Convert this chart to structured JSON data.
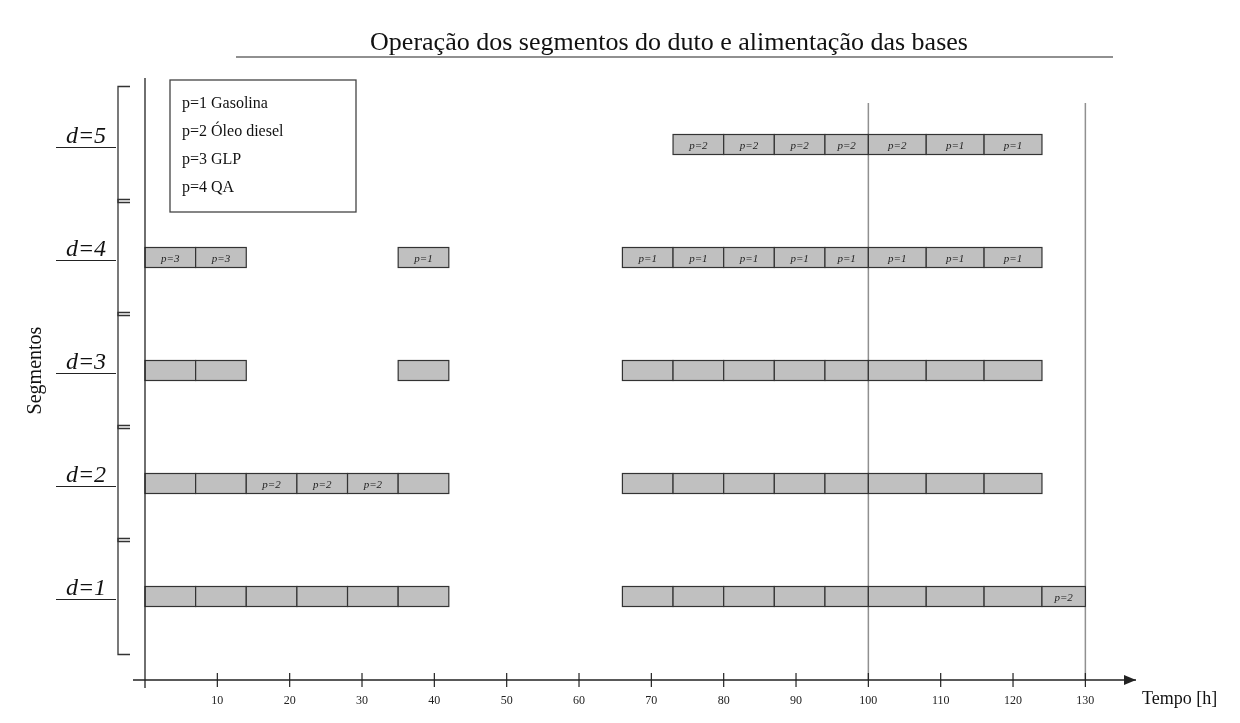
{
  "chart_data": {
    "type": "bar",
    "orientation": "horizontal",
    "title": "Operação dos segmentos do duto e alimentação das bases",
    "xlabel": "Tempo [h]",
    "ylabel": "Segmentos",
    "categories": [
      "d=5",
      "d=4",
      "d=3",
      "d=2",
      "d=1"
    ],
    "xlim": [
      0,
      137
    ],
    "xticks": [
      10,
      20,
      30,
      40,
      50,
      60,
      70,
      80,
      90,
      100,
      110,
      120,
      130
    ],
    "grid": false,
    "annotations": [
      "p=1 Gasolina",
      "p=2 Óleo diesel",
      "p=3 GLP",
      "p=4 QA",
      {
        "text": "p=3",
        "x": 3.5,
        "y": "d=4"
      },
      {
        "text": "p=3",
        "x": 10.5,
        "y": "d=4"
      },
      {
        "text": "p=1",
        "x": 38.5,
        "y": "d=4"
      },
      {
        "text": "p=1",
        "x": 69.5,
        "y": "d=4"
      },
      {
        "text": "p=1",
        "x": 76.5,
        "y": "d=4"
      },
      {
        "text": "p=1",
        "x": 83.5,
        "y": "d=4"
      },
      {
        "text": "p=1",
        "x": 90.5,
        "y": "d=4"
      },
      {
        "text": "p=1",
        "x": 97,
        "y": "d=4"
      },
      {
        "text": "p=1",
        "x": 104,
        "y": "d=4"
      },
      {
        "text": "p=1",
        "x": 112,
        "y": "d=4"
      },
      {
        "text": "p=1",
        "x": 120,
        "y": "d=4"
      },
      {
        "text": "p=2",
        "x": 76.5,
        "y": "d=5"
      },
      {
        "text": "p=2",
        "x": 83.5,
        "y": "d=5"
      },
      {
        "text": "p=2",
        "x": 90.5,
        "y": "d=5"
      },
      {
        "text": "p=2",
        "x": 97,
        "y": "d=5"
      },
      {
        "text": "p=2",
        "x": 104,
        "y": "d=5"
      },
      {
        "text": "p=1",
        "x": 112,
        "y": "d=5"
      },
      {
        "text": "p=1",
        "x": 120,
        "y": "d=5"
      },
      {
        "text": "p=2",
        "x": 17.5,
        "y": "d=2"
      },
      {
        "text": "p=2",
        "x": 24.5,
        "y": "d=2"
      },
      {
        "text": "p=2",
        "x": 31.5,
        "y": "d=2"
      },
      {
        "text": "p=2",
        "x": 127,
        "y": "d=1"
      }
    ],
    "ref_lines": [
      {
        "axis": "x",
        "value": 100,
        "color": "#909090"
      },
      {
        "axis": "x",
        "value": 130,
        "color": "#909090"
      }
    ],
    "series": [
      {
        "color": "#c0c0c0",
        "base": [
          null,
          0,
          0,
          0,
          0
        ],
        "values": [
          null,
          7,
          7,
          7,
          7
        ]
      },
      {
        "color": "#c0c0c0",
        "base": [
          null,
          7,
          7,
          7,
          7
        ],
        "values": [
          null,
          7,
          7,
          7,
          7
        ]
      },
      {
        "color": "#c0c0c0",
        "base": [
          null,
          null,
          null,
          14,
          14
        ],
        "values": [
          null,
          null,
          null,
          7,
          7
        ]
      },
      {
        "color": "#c0c0c0",
        "base": [
          null,
          null,
          null,
          21,
          21
        ],
        "values": [
          null,
          null,
          null,
          7,
          7
        ]
      },
      {
        "color": "#c0c0c0",
        "base": [
          null,
          null,
          null,
          28,
          28
        ],
        "values": [
          null,
          null,
          null,
          7,
          7
        ]
      },
      {
        "color": "#c0c0c0",
        "base": [
          null,
          35,
          35,
          35,
          35
        ],
        "values": [
          null,
          7,
          7,
          7,
          7
        ]
      },
      {
        "color": "#c0c0c0",
        "base": [
          null,
          66,
          66,
          66,
          66
        ],
        "values": [
          null,
          7,
          7,
          7,
          7
        ]
      },
      {
        "color": "#c0c0c0",
        "base": [
          73,
          73,
          73,
          73,
          73
        ],
        "values": [
          7,
          7,
          7,
          7,
          7
        ]
      },
      {
        "color": "#c0c0c0",
        "base": [
          80,
          80,
          80,
          80,
          80
        ],
        "values": [
          7,
          7,
          7,
          7,
          7
        ]
      },
      {
        "color": "#c0c0c0",
        "base": [
          87,
          87,
          87,
          87,
          87
        ],
        "values": [
          7,
          7,
          7,
          7,
          7
        ]
      },
      {
        "color": "#c0c0c0",
        "base": [
          94,
          94,
          94,
          94,
          94
        ],
        "values": [
          6,
          6,
          6,
          6,
          6
        ]
      },
      {
        "color": "#c0c0c0",
        "base": [
          100,
          100,
          100,
          100,
          100
        ],
        "values": [
          8,
          8,
          8,
          8,
          8
        ]
      },
      {
        "color": "#c0c0c0",
        "base": [
          108,
          108,
          108,
          108,
          108
        ],
        "values": [
          8,
          8,
          8,
          8,
          8
        ]
      },
      {
        "color": "#c0c0c0",
        "base": [
          116,
          116,
          116,
          116,
          116
        ],
        "values": [
          8,
          8,
          8,
          8,
          8
        ]
      },
      {
        "color": "#c0c0c0",
        "base": [
          null,
          null,
          null,
          null,
          124
        ],
        "values": [
          null,
          null,
          null,
          null,
          6
        ]
      }
    ]
  }
}
